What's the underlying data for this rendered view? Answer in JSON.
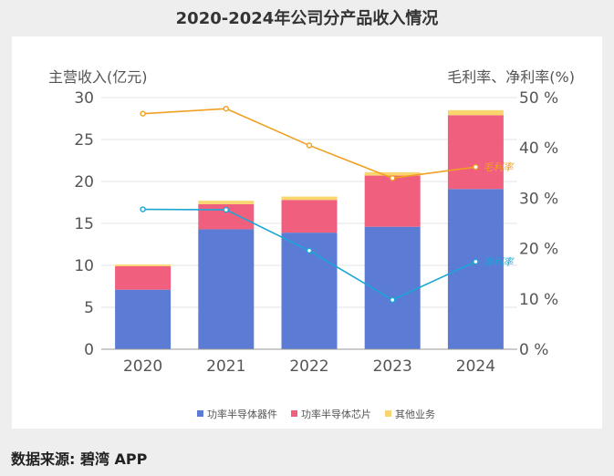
{
  "title": "2020-2024年公司分产品收入情况",
  "source": "数据来源: 碧湾 APP",
  "chart_data": {
    "type": "bar",
    "stacked": true,
    "categories": [
      "2020",
      "2021",
      "2022",
      "2023",
      "2024"
    ],
    "ylabel": "主营收入(亿元)",
    "y2label": "毛利率、净利率(%)",
    "ylim": [
      0,
      30
    ],
    "y2lim": [
      0,
      50
    ],
    "yticks": [
      "0",
      "5",
      "10",
      "15",
      "20",
      "25",
      "30"
    ],
    "y2ticks": [
      "0 %",
      "10 %",
      "20 %",
      "30 %",
      "40 %",
      "50 %"
    ],
    "grid": true,
    "legend_position": "bottom",
    "series": [
      {
        "name": "功率半导体器件",
        "color": "#5b7bd5",
        "values": [
          7.1,
          14.3,
          13.9,
          14.6,
          19.1
        ]
      },
      {
        "name": "功率半导体芯片",
        "color": "#f0607e",
        "values": [
          2.8,
          3.0,
          3.9,
          6.1,
          8.8
        ]
      },
      {
        "name": "其他业务",
        "color": "#f9d66d",
        "values": [
          0.2,
          0.4,
          0.4,
          0.4,
          0.6
        ]
      }
    ],
    "lines": [
      {
        "name": "毛利率",
        "label": "毛利率",
        "color": "#f0a020",
        "values": [
          46.8,
          47.8,
          40.5,
          34.0,
          36.2
        ]
      },
      {
        "name": "净利率",
        "label": "净利率",
        "color": "#1aa7d4",
        "values": [
          27.8,
          27.7,
          19.6,
          9.8,
          17.4
        ]
      }
    ]
  }
}
